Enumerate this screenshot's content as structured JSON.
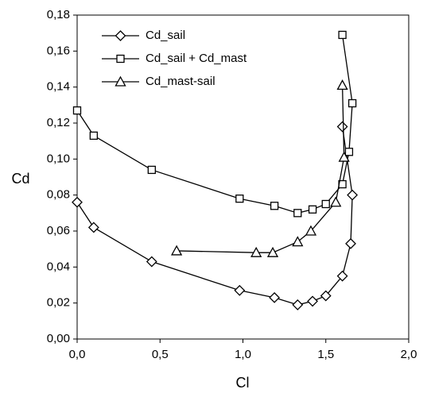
{
  "chart_data": {
    "type": "line",
    "xlabel": "Cl",
    "ylabel": "Cd",
    "xlim": [
      0,
      2
    ],
    "ylim": [
      0,
      0.18
    ],
    "xticks": [
      {
        "value": 0,
        "label": "0,0"
      },
      {
        "value": 0.5,
        "label": "0,5"
      },
      {
        "value": 1,
        "label": "1,0"
      },
      {
        "value": 1.5,
        "label": "1,5"
      },
      {
        "value": 2,
        "label": "2,0"
      }
    ],
    "yticks": [
      {
        "value": 0,
        "label": "0,00"
      },
      {
        "value": 0.02,
        "label": "0,02"
      },
      {
        "value": 0.04,
        "label": "0,04"
      },
      {
        "value": 0.06,
        "label": "0,06"
      },
      {
        "value": 0.08,
        "label": "0,08"
      },
      {
        "value": 0.1,
        "label": "0,10"
      },
      {
        "value": 0.12,
        "label": "0,12"
      },
      {
        "value": 0.14,
        "label": "0,14"
      },
      {
        "value": 0.16,
        "label": "0,16"
      },
      {
        "value": 0.18,
        "label": "0,18"
      }
    ],
    "grid": false,
    "legend": "upper left",
    "series": [
      {
        "name": "Cd_sail",
        "color": "#000000",
        "marker": "diamond",
        "x": [
          0,
          0.1,
          0.45,
          0.98,
          1.19,
          1.33,
          1.42,
          1.5,
          1.6,
          1.65,
          1.66,
          1.6
        ],
        "values": [
          0.076,
          0.062,
          0.043,
          0.027,
          0.023,
          0.019,
          0.021,
          0.024,
          0.035,
          0.053,
          0.08,
          0.118
        ]
      },
      {
        "name": "Cd_sail + Cd_mast",
        "color": "#000000",
        "marker": "square",
        "x": [
          0,
          0.1,
          0.45,
          0.98,
          1.19,
          1.33,
          1.42,
          1.5,
          1.6,
          1.64,
          1.66,
          1.6
        ],
        "values": [
          0.127,
          0.113,
          0.094,
          0.078,
          0.074,
          0.07,
          0.072,
          0.075,
          0.086,
          0.104,
          0.131,
          0.169
        ]
      },
      {
        "name": "Cd_mast-sail",
        "color": "#000000",
        "marker": "triangle",
        "x": [
          0.6,
          1.08,
          1.18,
          1.33,
          1.41,
          1.56,
          1.61,
          1.6
        ],
        "values": [
          0.049,
          0.048,
          0.048,
          0.054,
          0.06,
          0.076,
          0.101,
          0.141
        ]
      }
    ]
  }
}
